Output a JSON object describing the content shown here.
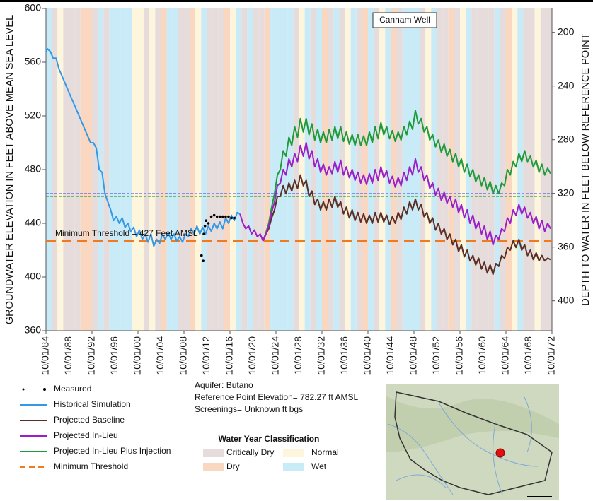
{
  "chart_data": {
    "type": "line",
    "title": "Canham Well",
    "y_label": "GROUNDWATER ELEVATION IN FEET ABOVE MEAN SEA LEVEL",
    "y2_label": "DEPTH TO WATER IN FEET BELOW REFERENCE POINT",
    "xlim": [
      1984.75,
      2072.75
    ],
    "xticks": [
      {
        "value": 1984.75,
        "label": "10/01/84"
      },
      {
        "value": 1988.75,
        "label": "10/01/88"
      },
      {
        "value": 1992.75,
        "label": "10/01/92"
      },
      {
        "value": 1996.75,
        "label": "10/01/96"
      },
      {
        "value": 2000.75,
        "label": "10/01/00"
      },
      {
        "value": 2004.75,
        "label": "10/01/04"
      },
      {
        "value": 2008.75,
        "label": "10/01/08"
      },
      {
        "value": 2012.75,
        "label": "10/01/12"
      },
      {
        "value": 2016.75,
        "label": "10/01/16"
      },
      {
        "value": 2020.75,
        "label": "10/01/20"
      },
      {
        "value": 2024.75,
        "label": "10/01/24"
      },
      {
        "value": 2028.75,
        "label": "10/01/28"
      },
      {
        "value": 2032.75,
        "label": "10/01/32"
      },
      {
        "value": 2036.75,
        "label": "10/01/36"
      },
      {
        "value": 2040.75,
        "label": "10/01/40"
      },
      {
        "value": 2044.75,
        "label": "10/01/44"
      },
      {
        "value": 2048.75,
        "label": "10/01/48"
      },
      {
        "value": 2052.75,
        "label": "10/01/52"
      },
      {
        "value": 2056.75,
        "label": "10/01/56"
      },
      {
        "value": 2060.75,
        "label": "10/01/60"
      },
      {
        "value": 2064.75,
        "label": "10/01/64"
      },
      {
        "value": 2068.75,
        "label": "10/01/68"
      },
      {
        "value": 2072.75,
        "label": "10/01/72"
      }
    ],
    "ylim": [
      360,
      600
    ],
    "yticks": [
      360,
      400,
      440,
      480,
      520,
      560,
      600
    ],
    "y2lim": [
      422.27,
      182.27
    ],
    "y2ticks": [
      200,
      240,
      280,
      320,
      360,
      400
    ],
    "x": [
      2018.5,
      2019,
      2019.5,
      2020,
      2020.5,
      2021,
      2021.5,
      2022,
      2022.5,
      2023,
      2023.5,
      2024,
      2024.5,
      2025,
      2025.5,
      2026,
      2026.5,
      2027,
      2027.5,
      2028,
      2028.5,
      2029,
      2029.5,
      2030,
      2030.5,
      2031,
      2031.5,
      2032,
      2032.5,
      2033,
      2033.5,
      2034,
      2034.5,
      2035,
      2035.5,
      2036,
      2036.5,
      2037,
      2037.5,
      2038,
      2038.5,
      2039,
      2039.5,
      2040,
      2040.5,
      2041,
      2041.5,
      2042,
      2042.5,
      2043,
      2043.5,
      2044,
      2044.5,
      2045,
      2045.5,
      2046,
      2046.5,
      2047,
      2047.5,
      2048,
      2048.5,
      2049,
      2049.5,
      2050,
      2050.5,
      2051,
      2051.5,
      2052,
      2052.5,
      2053,
      2053.5,
      2054,
      2054.5,
      2055,
      2055.5,
      2056,
      2056.5,
      2057,
      2057.5,
      2058,
      2058.5,
      2059,
      2059.5,
      2060,
      2060.5,
      2061,
      2061.5,
      2062,
      2062.5,
      2063,
      2063.5,
      2064,
      2064.5,
      2065,
      2065.5,
      2066,
      2066.5,
      2067,
      2067.5,
      2068,
      2068.5,
      2069,
      2069.5,
      2070,
      2070.5,
      2071,
      2071.5,
      2072,
      2072.5
    ],
    "series": [
      {
        "name": "Measured",
        "type": "scatter",
        "color": "#000000",
        "x": [
          2011.8,
          2012.1,
          2012.2,
          2012.4,
          2012.6,
          2013,
          2013.5,
          2014,
          2014.5,
          2015,
          2015.5,
          2016,
          2016.5,
          2017,
          2017.5
        ],
        "values": [
          416,
          412,
          432,
          438,
          442,
          440,
          445,
          446,
          445,
          445,
          445,
          445,
          445,
          444,
          444
        ]
      },
      {
        "name": "Historical Simulation",
        "color": "#3399e6",
        "x": [
          1984.75,
          1985,
          1985.5,
          1986,
          1986.5,
          1987,
          1988,
          1989,
          1990,
          1991,
          1992,
          1992.5,
          1993,
          1993.5,
          1994,
          1994.5,
          1995,
          1996,
          1996.5,
          1997,
          1997.5,
          1998,
          1998.5,
          1999,
          1999.5,
          2000,
          2000.5,
          2001,
          2001.5,
          2002,
          2002.5,
          2003,
          2003.5,
          2004,
          2004.5,
          2005,
          2005.5,
          2006,
          2006.5,
          2007,
          2007.5,
          2008,
          2008.5,
          2009,
          2009.5,
          2010,
          2010.5,
          2011,
          2011.5,
          2012,
          2012.5,
          2013,
          2013.5,
          2014,
          2014.5,
          2015,
          2015.5,
          2016,
          2016.5,
          2017,
          2017.5,
          2018,
          2018.5
        ],
        "values": [
          568,
          570,
          568,
          563,
          563,
          555,
          545,
          535,
          525,
          515,
          505,
          500,
          500,
          496,
          480,
          478,
          462,
          450,
          442,
          445,
          440,
          444,
          437,
          440,
          434,
          437,
          430,
          435,
          428,
          432,
          426,
          432,
          423,
          428,
          425,
          432,
          428,
          433,
          428,
          432,
          427,
          430,
          426,
          432,
          430,
          436,
          432,
          438,
          432,
          437,
          432,
          438,
          434,
          440,
          436,
          441,
          436,
          444,
          440,
          446,
          442,
          448,
          447
        ]
      },
      {
        "name": "Projected Baseline",
        "color": "#5a2e22",
        "values": [
          null,
          null,
          null,
          null,
          null,
          null,
          null,
          null,
          427,
          432,
          436,
          444,
          450,
          460,
          460,
          468,
          462,
          470,
          464,
          472,
          466,
          476,
          468,
          472,
          460,
          464,
          454,
          458,
          450,
          456,
          450,
          458,
          452,
          460,
          452,
          456,
          447,
          452,
          444,
          450,
          442,
          448,
          441,
          447,
          440,
          446,
          440,
          448,
          441,
          448,
          441,
          446,
          439,
          445,
          440,
          448,
          443,
          452,
          447,
          456,
          450,
          458,
          450,
          454,
          445,
          448,
          440,
          444,
          435,
          440,
          432,
          436,
          428,
          432,
          424,
          428,
          419,
          424,
          415,
          420,
          412,
          416,
          409,
          414,
          406,
          411,
          403,
          409,
          402,
          410,
          408,
          416,
          414,
          422,
          420,
          427,
          422,
          428,
          420,
          424,
          416,
          420,
          413,
          418,
          412,
          416,
          412,
          414,
          413
        ]
      },
      {
        "name": "Projected In-Lieu",
        "color": "#9a1fc8",
        "values": [
          447,
          440,
          436,
          438,
          432,
          435,
          430,
          432,
          427,
          432,
          438,
          448,
          456,
          468,
          470,
          480,
          476,
          488,
          482,
          492,
          486,
          498,
          490,
          500,
          488,
          494,
          482,
          488,
          478,
          484,
          476,
          482,
          477,
          486,
          478,
          487,
          476,
          482,
          474,
          480,
          472,
          478,
          470,
          476,
          469,
          477,
          470,
          480,
          472,
          482,
          474,
          479,
          470,
          475,
          467,
          474,
          468,
          478,
          472,
          482,
          476,
          488,
          478,
          482,
          472,
          476,
          466,
          470,
          461,
          466,
          457,
          463,
          455,
          460,
          452,
          458,
          448,
          454,
          444,
          450,
          440,
          446,
          436,
          441,
          432,
          438,
          428,
          434,
          424,
          431,
          428,
          436,
          434,
          444,
          440,
          450,
          446,
          454,
          447,
          452,
          444,
          448,
          440,
          445,
          436,
          442,
          434,
          440,
          436
        ]
      },
      {
        "name": "Projected In-Lieu Plus Injection",
        "color": "#1f9a3a",
        "values": [
          null,
          null,
          null,
          null,
          null,
          null,
          null,
          null,
          427,
          433,
          440,
          452,
          462,
          476,
          480,
          494,
          490,
          504,
          498,
          512,
          504,
          518,
          508,
          518,
          506,
          514,
          502,
          510,
          500,
          508,
          500,
          510,
          502,
          512,
          503,
          512,
          501,
          508,
          499,
          506,
          498,
          506,
          498,
          505,
          498,
          508,
          500,
          512,
          503,
          515,
          506,
          512,
          503,
          509,
          501,
          508,
          502,
          512,
          506,
          516,
          510,
          524,
          514,
          518,
          508,
          512,
          502,
          506,
          497,
          502,
          493,
          499,
          490,
          495,
          486,
          492,
          482,
          488,
          478,
          484,
          475,
          480,
          471,
          476,
          468,
          474,
          465,
          471,
          462,
          468,
          462,
          470,
          468,
          480,
          476,
          486,
          482,
          492,
          486,
          494,
          486,
          490,
          482,
          487,
          478,
          484,
          476,
          481,
          477
        ]
      },
      {
        "name": "Minimum Threshold",
        "type": "hline",
        "color": "#f07a20",
        "value": 427
      }
    ],
    "reference_lines": [
      {
        "value": 462,
        "color": "#3b3bd6"
      },
      {
        "value": 460,
        "color": "#2ca02c"
      }
    ],
    "annotation": "Minimum Threshold = 427 Feet AMSL",
    "info": [
      "Aquifer: Butano",
      "Reference Point Elevation= 782.27 ft AMSL",
      "Screenings= Unknown ft bgs"
    ],
    "water_year_classification": {
      "title": "Water Year Classification",
      "items": [
        {
          "name": "Critically Dry",
          "color": "#e6dcdc"
        },
        {
          "name": "Dry",
          "color": "#f9d7c0"
        },
        {
          "name": "Normal",
          "color": "#fdf5dc"
        },
        {
          "name": "Wet",
          "color": "#c9eaf7"
        }
      ]
    },
    "water_year_bands": [
      3,
      0,
      2,
      0,
      0,
      0,
      1,
      1,
      0,
      3,
      0,
      3,
      3,
      3,
      3,
      2,
      2,
      0,
      2,
      0,
      1,
      3,
      3,
      0,
      0,
      1,
      2,
      3,
      0,
      0,
      0,
      1,
      2,
      3,
      0,
      3,
      0,
      0,
      1,
      3,
      3,
      3,
      3,
      0,
      2,
      3,
      0,
      3,
      1,
      0,
      3,
      0,
      2,
      3,
      0,
      1,
      3,
      0,
      2,
      3,
      1,
      0,
      3,
      3,
      3,
      0,
      2,
      3,
      0,
      0,
      1,
      0,
      2,
      3,
      0,
      0,
      0,
      0,
      3,
      0,
      1,
      2,
      3,
      0,
      0,
      2,
      0,
      0
    ]
  }
}
